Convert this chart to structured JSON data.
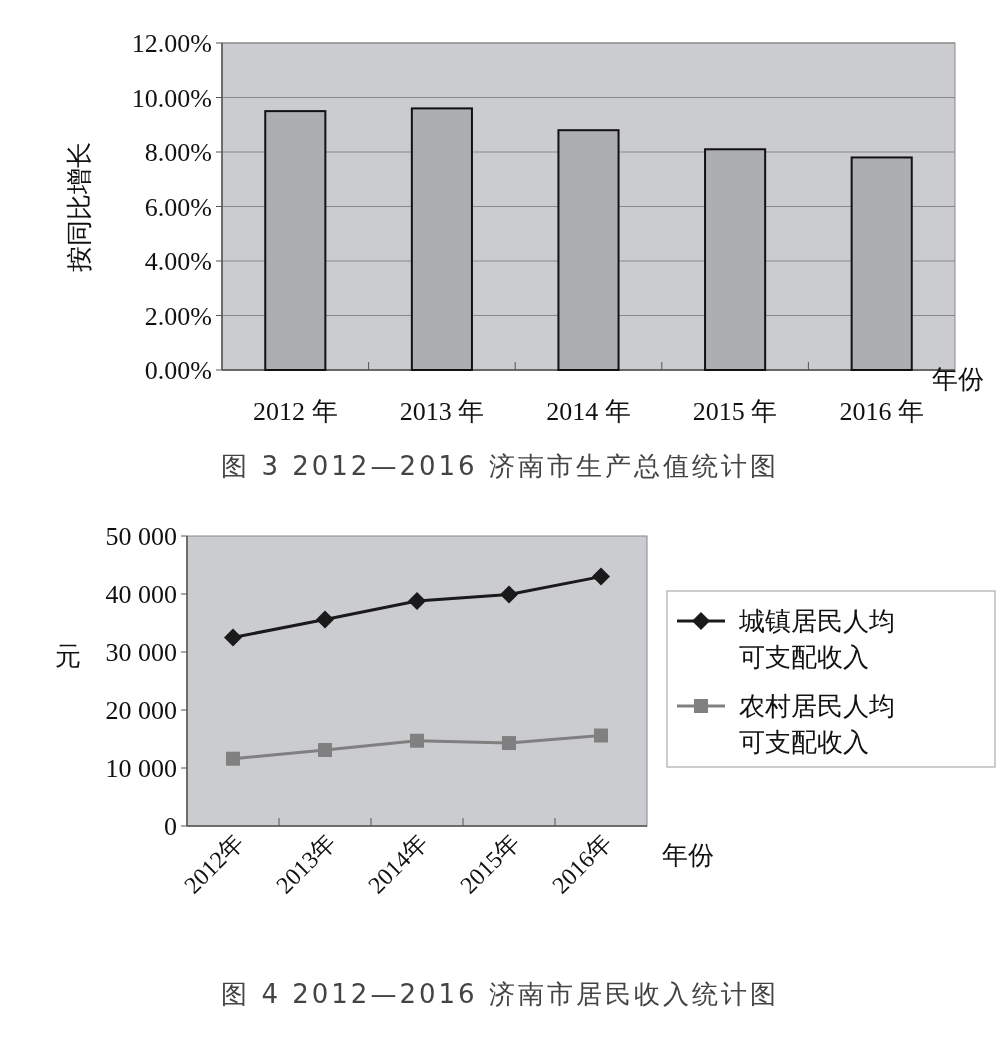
{
  "chart_data": [
    {
      "type": "bar",
      "title": "图 3 2012—2016 济南市生产总值统计图",
      "ylabel": "按同比增长",
      "xlabel": "年份",
      "categories": [
        "2012 年",
        "2013 年",
        "2014 年",
        "2015 年",
        "2016 年"
      ],
      "values": [
        9.5,
        9.6,
        8.8,
        8.1,
        7.8
      ],
      "color": "#adaeb2",
      "ylim": [
        0,
        12
      ],
      "yticks": [
        {
          "value": 0,
          "label": "0.00%"
        },
        {
          "value": 2,
          "label": "2.00%"
        },
        {
          "value": 4,
          "label": "4.00%"
        },
        {
          "value": 6,
          "label": "6.00%"
        },
        {
          "value": 8,
          "label": "8.00%"
        },
        {
          "value": 10,
          "label": "10.00%"
        },
        {
          "value": 12,
          "label": "12.00%"
        }
      ],
      "grid": "y"
    },
    {
      "type": "line",
      "title": "图 4  2012—2016 济南市居民收入统计图",
      "ylabel": "元",
      "xlabel": "年份",
      "categories": [
        "2012年",
        "2013年",
        "2014年",
        "2015年",
        "2016年"
      ],
      "series": [
        {
          "name": "城镇居民人均可支配收入",
          "color": "#1a1a1a",
          "marker": "diamond",
          "values": [
            32500,
            35600,
            38800,
            39900,
            43000
          ]
        },
        {
          "name": "农村居民人均可支配收入",
          "color": "#808080",
          "marker": "square",
          "values": [
            11600,
            13100,
            14700,
            14300,
            15600
          ]
        }
      ],
      "ylim": [
        0,
        50000
      ],
      "yticks": [
        {
          "value": 0,
          "label": "0"
        },
        {
          "value": 10000,
          "label": "10 000"
        },
        {
          "value": 20000,
          "label": "20 000"
        },
        {
          "value": 30000,
          "label": "30 000"
        },
        {
          "value": 40000,
          "label": "40 000"
        },
        {
          "value": 50000,
          "label": "50 000"
        }
      ],
      "legend": "right"
    }
  ]
}
